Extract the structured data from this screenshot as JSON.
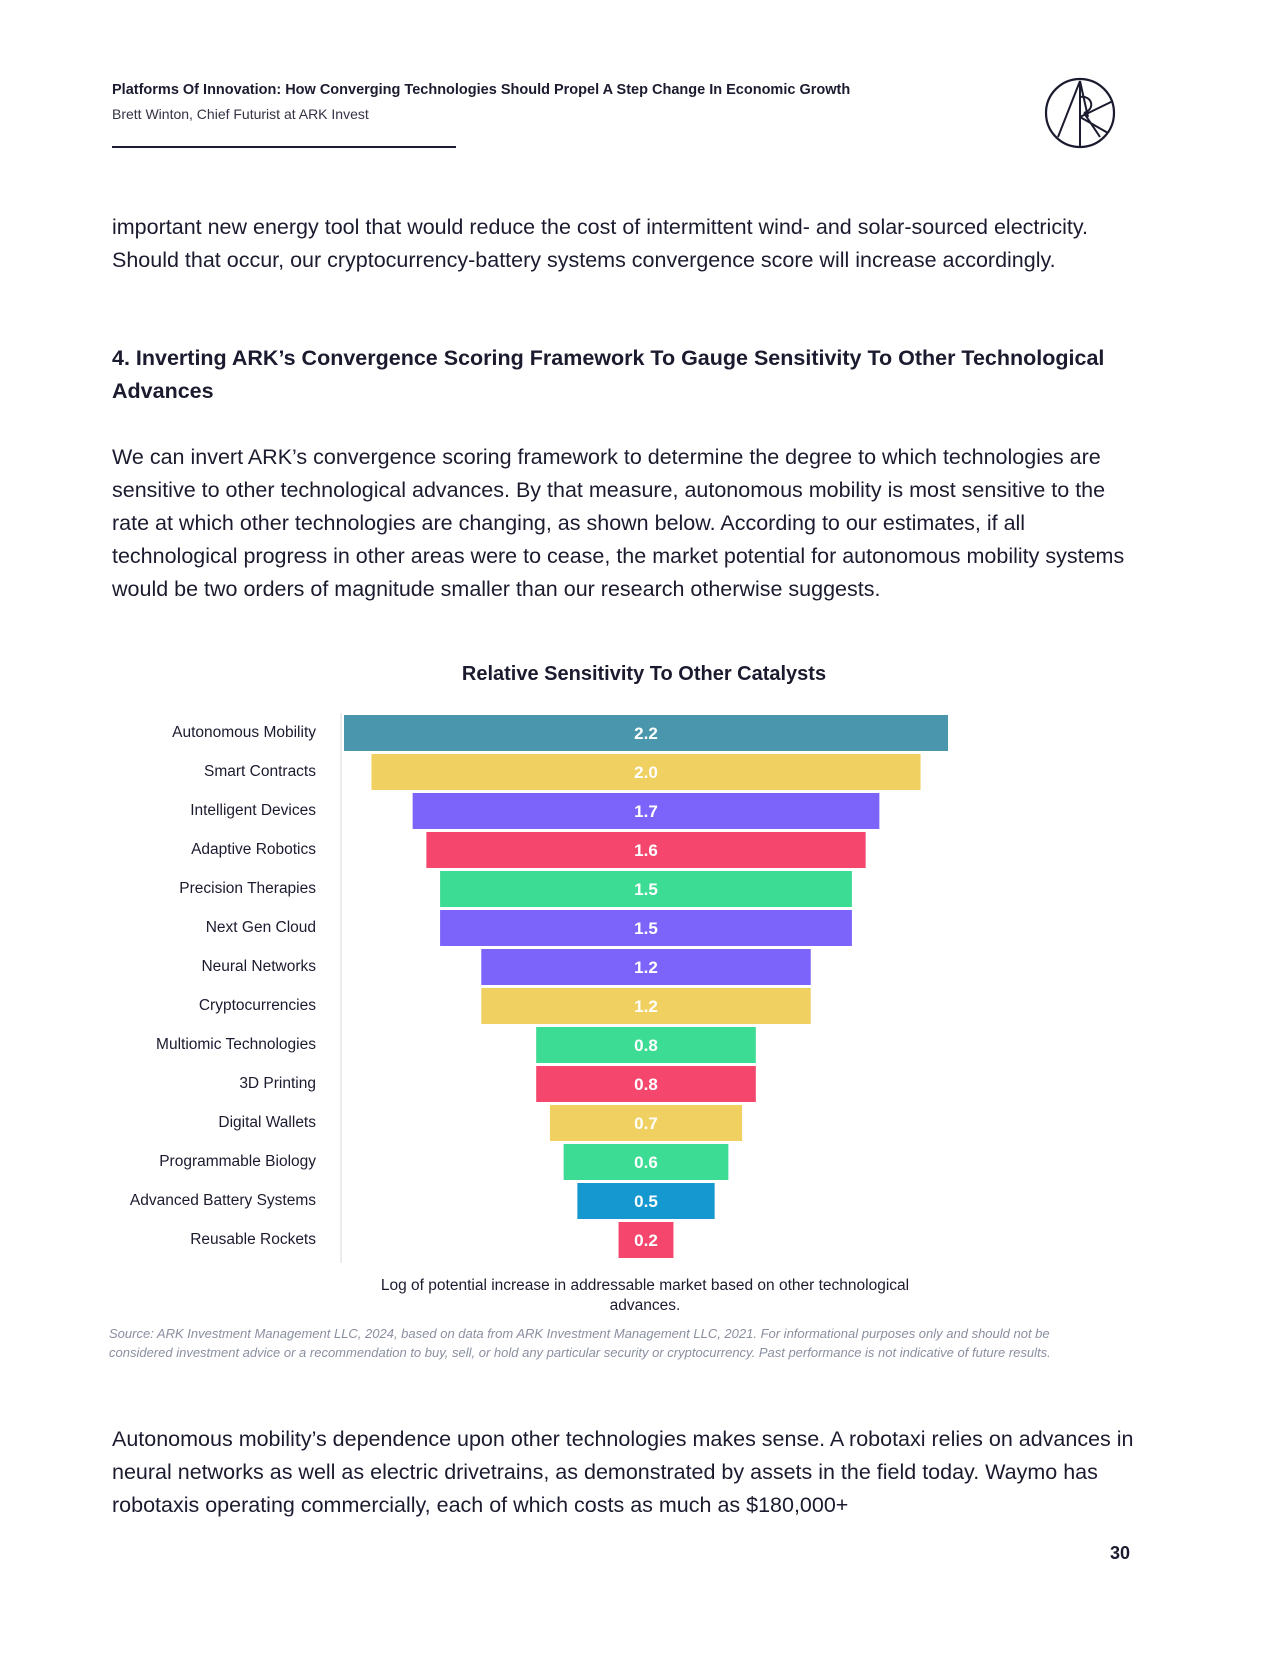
{
  "header": {
    "title": "Platforms Of Innovation: How Converging Technologies Should Propel A Step Change In Economic Growth",
    "author": "Brett Winton, Chief Futurist at ARK Invest"
  },
  "logo": {
    "icon": "ark-logo-icon"
  },
  "body": {
    "para1": "important new energy tool that would reduce the cost of intermittent wind- and solar-sourced electricity. Should that occur, our cryptocurrency-battery systems convergence score will increase accordingly.",
    "heading": "4. Inverting ARK’s Convergence Scoring Framework To Gauge Sensitivity To Other Technological Advances",
    "para2": "We can invert ARK’s convergence scoring framework to determine the degree to which technologies are sensitive to other technological advances. By that measure, autonomous mobility is most sensitive to the rate at which other technologies are changing, as shown below. According to our estimates, if all technological progress in other areas were to cease, the market potential for autonomous mobility systems would be two orders of magnitude smaller than our research otherwise suggests.",
    "para3": "Autonomous mobility’s dependence upon other technologies makes sense. A robotaxi relies on advances in neural networks as well as electric drivetrains, as demonstrated by assets in the field today. Waymo has robotaxis operating commercially, each of which costs as much as $180,000+"
  },
  "chart_data": {
    "type": "bar",
    "orientation": "horizontal-centered",
    "title": "Relative Sensitivity To Other Catalysts",
    "xlabel": "Log of potential increase in addressable market based on other technological advances.",
    "ylabel": "",
    "categories": [
      "Autonomous Mobility",
      "Smart Contracts",
      "Intelligent Devices",
      "Adaptive Robotics",
      "Precision Therapies",
      "Next Gen Cloud",
      "Neural Networks",
      "Cryptocurrencies",
      "Multiomic Technologies",
      "3D Printing",
      "Digital Wallets",
      "Programmable Biology",
      "Advanced Battery Systems",
      "Reusable Rockets"
    ],
    "values": [
      2.2,
      2.0,
      1.7,
      1.6,
      1.5,
      1.5,
      1.2,
      1.2,
      0.8,
      0.8,
      0.7,
      0.6,
      0.5,
      0.2
    ],
    "value_labels": [
      "2.2",
      "2.0",
      "1.7",
      "1.6",
      "1.5",
      "1.5",
      "1.2",
      "1.2",
      "0.8",
      "0.8",
      "0.7",
      "0.6",
      "0.5",
      "0.2"
    ],
    "colors": [
      "#4a97ad",
      "#f0d060",
      "#7c63fa",
      "#f5476e",
      "#3ddc94",
      "#7c63fa",
      "#7c63fa",
      "#f0d060",
      "#3ddc94",
      "#f5476e",
      "#f0d060",
      "#3ddc94",
      "#1498cf",
      "#f5476e"
    ],
    "label_color": "#ffffff",
    "grid": false,
    "legend": "none"
  },
  "source": "Source: ARK Investment Management LLC, 2024, based on data from ARK Investment Management LLC, 2021. For informational purposes only and should not be considered investment advice or a recommendation to buy, sell, or hold any particular security or cryptocurrency. Past performance is not indicative of future results.",
  "page_number": "30"
}
